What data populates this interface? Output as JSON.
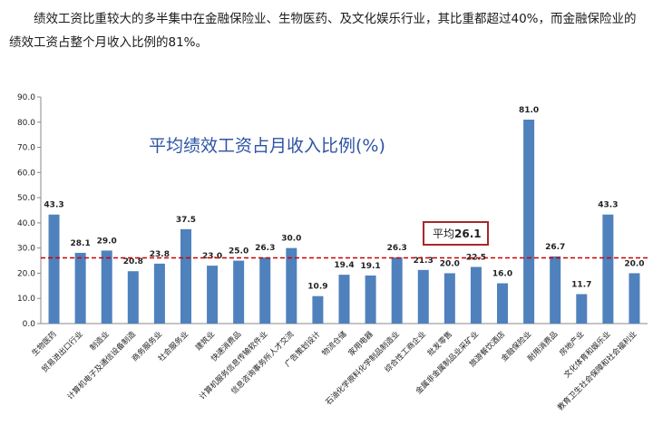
{
  "intro_text": "绩效工资比重较大的多半集中在金融保险业、生物医药、及文化娱乐行业，其比重都超过40%，而金融保险业的绩效工资占整个月收入比例的81%。",
  "chart_data": {
    "type": "bar",
    "title": "平均绩效工资占月收入比例(%)",
    "categories": [
      "生物医药",
      "贸易进出口行业",
      "制造业",
      "计算机电子及通信设备制造",
      "商务服务业",
      "社会服务业",
      "建筑业",
      "快速消费品",
      "计算机服务信息传输软件业",
      "信息咨询事务所人才交流",
      "广告策划设计",
      "物流仓储",
      "家用电器",
      "石油化学原料化学制品制造业",
      "综合性工商企业",
      "批发零售",
      "金属非金属制品业采矿业",
      "旅游餐饮酒店",
      "金融保险业",
      "耐用消费品",
      "房地产业",
      "文化体育和娱乐业",
      "教育卫生社会保障和社会福利业"
    ],
    "values": [
      43.3,
      28.1,
      29.0,
      20.8,
      23.8,
      37.5,
      23.0,
      25.0,
      26.3,
      30.0,
      10.9,
      19.4,
      19.1,
      26.3,
      21.3,
      20.0,
      22.5,
      16.0,
      81.0,
      26.7,
      11.7,
      43.3,
      20.0
    ],
    "ylim": [
      0,
      90
    ],
    "yticks": [
      "0.0",
      "10.0",
      "20.0",
      "30.0",
      "40.0",
      "50.0",
      "60.0",
      "70.0",
      "80.0",
      "90.0"
    ],
    "average": 26.1,
    "average_label": "平均",
    "average_value_text": "26.1",
    "colors": {
      "bar": "#4f81bd",
      "avg_line": "#cc0000",
      "avg_box": "#a6282c",
      "title": "#2d54a5"
    }
  }
}
